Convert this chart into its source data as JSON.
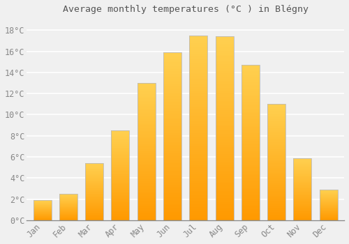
{
  "title": "Average monthly temperatures (°C ) in Blégny",
  "months": [
    "Jan",
    "Feb",
    "Mar",
    "Apr",
    "May",
    "Jun",
    "Jul",
    "Aug",
    "Sep",
    "Oct",
    "Nov",
    "Dec"
  ],
  "temperatures": [
    1.9,
    2.5,
    5.4,
    8.5,
    13.0,
    15.9,
    17.5,
    17.4,
    14.7,
    11.0,
    5.9,
    2.9
  ],
  "bar_color_main": "#FFAA00",
  "bar_color_top": "#FFD050",
  "bar_color_bottom": "#FF9900",
  "bar_edge_color": "#BBBBBB",
  "background_color": "#F0F0F0",
  "grid_color": "#FFFFFF",
  "text_color": "#888888",
  "title_color": "#555555",
  "ylim": [
    0,
    19
  ],
  "yticks": [
    0,
    2,
    4,
    6,
    8,
    10,
    12,
    14,
    16,
    18
  ],
  "ytick_labels": [
    "0°C",
    "2°C",
    "4°C",
    "6°C",
    "8°C",
    "10°C",
    "12°C",
    "14°C",
    "16°C",
    "18°C"
  ]
}
